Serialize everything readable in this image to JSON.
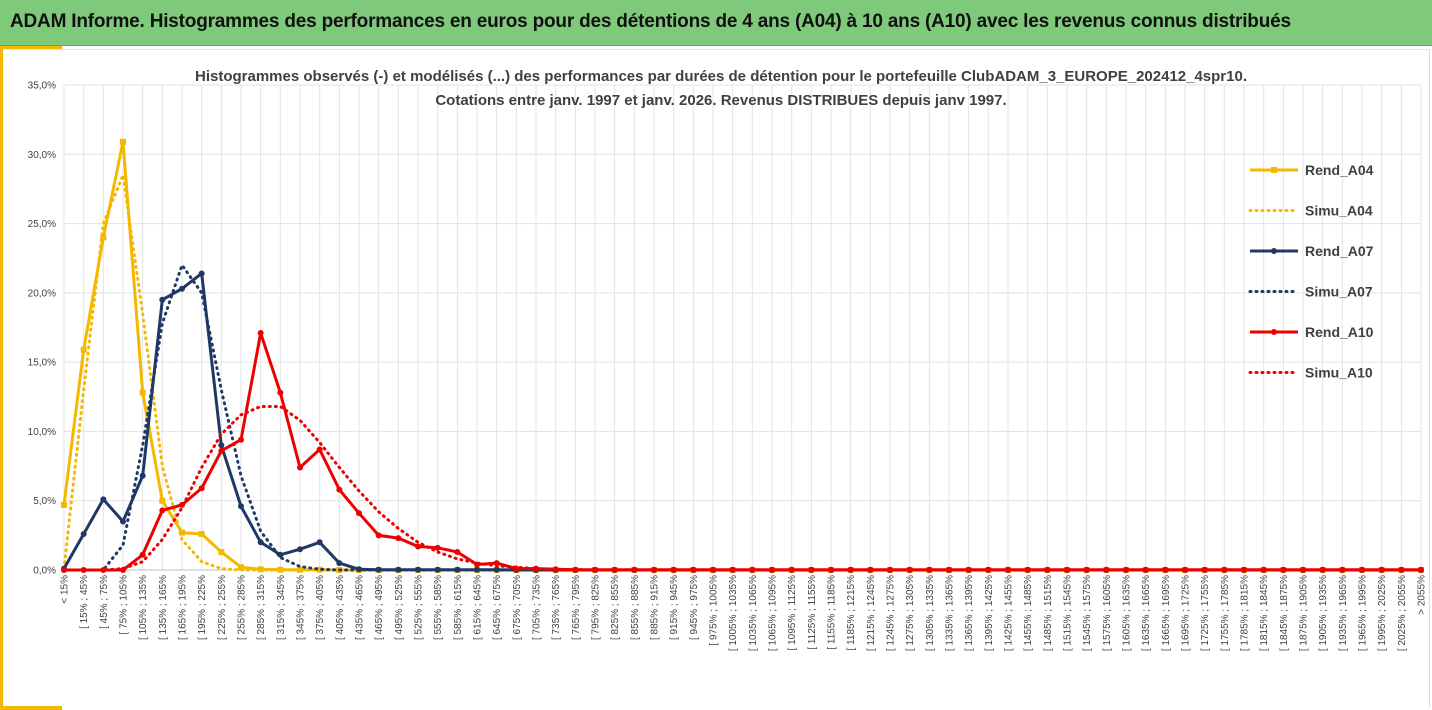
{
  "banner": {
    "title": "ADAM Informe. Histogrammes des performances en euros pour des détentions de 4 ans (A04) à 10 ans (A10) avec les revenus connus distribués"
  },
  "colors": {
    "banner_bg": "#7ec97a",
    "accent": "#f5b800",
    "a04": "#f5b800",
    "a07": "#1f3864",
    "a10": "#ee0000"
  },
  "chart_data": {
    "type": "line",
    "title_lines": [
      "Histogrammes observés (-) et modélisés (...) des performances par durées de détention pour le portefeuille ClubADAM_3_EUROPE_202412_4spr10.",
      "Cotations entre janv. 1997 et janv. 2026. Revenus DISTRIBUES depuis janv 1997."
    ],
    "ylim": [
      0,
      35
    ],
    "y_ticks": [
      "0,0%",
      "5,0%",
      "10,0%",
      "15,0%",
      "20,0%",
      "25,0%",
      "30,0%",
      "35,0%"
    ],
    "y_tick_values": [
      0,
      5,
      10,
      15,
      20,
      25,
      30,
      35
    ],
    "grid": true,
    "legend_position": "right",
    "categories": [
      "< 15%",
      "[ 15% ; 45%",
      "[ 45% ; 75%",
      "[ 75% ; 105%",
      "[ 105% ; 135%",
      "[ 135% ; 165%",
      "[ 165% ; 195%",
      "[ 195% ; 225%",
      "[ 225% ; 255%",
      "[ 255% ; 285%",
      "[ 285% ; 315%",
      "[ 315% ; 345%",
      "[ 345% ; 375%",
      "[ 375% ; 405%",
      "[ 405% ; 435%",
      "[ 435% ; 465%",
      "[ 465% ; 495%",
      "[ 495% ; 525%",
      "[ 525% ; 555%",
      "[ 555% ; 585%",
      "[ 585% ; 615%",
      "[ 615% ; 645%",
      "[ 645% ; 675%",
      "[ 675% ; 705%",
      "[ 705% ; 735%",
      "[ 735% ; 765%",
      "[ 765% ; 795%",
      "[ 795% ; 825%",
      "[ 825% ; 855%",
      "[ 855% ; 885%",
      "[ 885% ; 915%",
      "[ 915% ; 945%",
      "[ 945% ; 975%",
      "[ 975% ; 1005%",
      "[ 1005% ; 1035%",
      "[ 1035% ; 1065%",
      "[ 1065% ; 1095%",
      "[ 1095% ; 1125%",
      "[ 1125% ; 1155%",
      "[ 1155% ; 1185%",
      "[ 1185% ; 1215%",
      "[ 1215% ; 1245%",
      "[ 1245% ; 1275%",
      "[ 1275% ; 1305%",
      "[ 1305% ; 1335%",
      "[ 1335% ; 1365%",
      "[ 1365% ; 1395%",
      "[ 1395% ; 1425%",
      "[ 1425% ; 1455%",
      "[ 1455% ; 1485%",
      "[ 1485% ; 1515%",
      "[ 1515% ; 1545%",
      "[ 1545% ; 1575%",
      "[ 1575% ; 1605%",
      "[ 1605% ; 1635%",
      "[ 1635% ; 1665%",
      "[ 1665% ; 1695%",
      "[ 1695% ; 1725%",
      "[ 1725% ; 1755%",
      "[ 1755% ; 1785%",
      "[ 1785% ; 1815%",
      "[ 1815% ; 1845%",
      "[ 1845% ; 1875%",
      "[ 1875% ; 1905%",
      "[ 1905% ; 1935%",
      "[ 1935% ; 1965%",
      "[ 1965% ; 1995%",
      "[ 1995% ; 2025%",
      "[ 2025% ; 2055%",
      "> 2055%"
    ],
    "series": [
      {
        "name": "Rend_A04",
        "style": "solid",
        "color": "#f5b800",
        "marker": "square",
        "values": [
          4.7,
          15.9,
          24.0,
          30.9,
          12.8,
          5.0,
          2.7,
          2.6,
          1.3,
          0.2,
          0.05,
          0.02,
          0.02,
          0.02,
          0,
          0,
          0,
          0,
          0,
          0,
          0,
          0,
          0,
          0,
          0,
          0,
          0,
          0,
          0,
          0,
          0,
          0,
          0,
          0,
          0,
          0,
          0,
          0,
          0,
          0,
          0,
          0,
          0,
          0,
          0,
          0,
          0,
          0,
          0,
          0,
          0,
          0,
          0,
          0,
          0,
          0,
          0,
          0,
          0,
          0,
          0,
          0,
          0,
          0,
          0,
          0,
          0,
          0,
          0,
          0
        ]
      },
      {
        "name": "Simu_A04",
        "style": "dotted",
        "color": "#f5b800",
        "marker": "none",
        "values": [
          0.1,
          13.0,
          25.0,
          28.5,
          18.5,
          7.5,
          2.2,
          0.6,
          0.1,
          0,
          0,
          0,
          0,
          0,
          0,
          0,
          0,
          0,
          0,
          0,
          0,
          0,
          0,
          0,
          0,
          0,
          0,
          0,
          0,
          0,
          0,
          0,
          0,
          0,
          0,
          0,
          0,
          0,
          0,
          0,
          0,
          0,
          0,
          0,
          0,
          0,
          0,
          0,
          0,
          0,
          0,
          0,
          0,
          0,
          0,
          0,
          0,
          0,
          0,
          0,
          0,
          0,
          0,
          0,
          0,
          0,
          0,
          0,
          0,
          0
        ]
      },
      {
        "name": "Rend_A07",
        "style": "solid",
        "color": "#1f3864",
        "marker": "circle",
        "values": [
          0.1,
          2.6,
          5.1,
          3.5,
          6.8,
          19.5,
          20.3,
          21.4,
          9.0,
          4.6,
          2.0,
          1.1,
          1.5,
          2.0,
          0.5,
          0.05,
          0.02,
          0.02,
          0.02,
          0.02,
          0.02,
          0.02,
          0.02,
          0,
          0,
          0,
          0,
          0,
          0,
          0,
          0,
          0,
          0,
          0,
          0,
          0,
          0,
          0,
          0,
          0,
          0,
          0,
          0,
          0,
          0,
          0,
          0,
          0,
          0,
          0,
          0,
          0,
          0,
          0,
          0,
          0,
          0,
          0,
          0,
          0,
          0,
          0,
          0,
          0,
          0,
          0,
          0,
          0,
          0,
          0
        ]
      },
      {
        "name": "Simu_A07",
        "style": "dotted",
        "color": "#1f3864",
        "marker": "none",
        "values": [
          0,
          0,
          0,
          1.8,
          9.0,
          17.8,
          22.0,
          20.0,
          13.0,
          6.8,
          2.8,
          0.9,
          0.25,
          0.05,
          0,
          0,
          0,
          0,
          0,
          0,
          0,
          0,
          0,
          0,
          0,
          0,
          0,
          0,
          0,
          0,
          0,
          0,
          0,
          0,
          0,
          0,
          0,
          0,
          0,
          0,
          0,
          0,
          0,
          0,
          0,
          0,
          0,
          0,
          0,
          0,
          0,
          0,
          0,
          0,
          0,
          0,
          0,
          0,
          0,
          0,
          0,
          0,
          0,
          0,
          0,
          0,
          0,
          0,
          0,
          0
        ]
      },
      {
        "name": "Rend_A10",
        "style": "solid",
        "color": "#ee0000",
        "marker": "circle",
        "values": [
          0,
          0,
          0,
          0,
          1.1,
          4.3,
          4.7,
          5.9,
          8.6,
          9.4,
          17.1,
          12.8,
          7.4,
          8.7,
          5.8,
          4.1,
          2.5,
          2.3,
          1.7,
          1.6,
          1.3,
          0.4,
          0.5,
          0.1,
          0.1,
          0.05,
          0.02,
          0.02,
          0.02,
          0.02,
          0.02,
          0.02,
          0.02,
          0.02,
          0.02,
          0.02,
          0.02,
          0.02,
          0.02,
          0.02,
          0.02,
          0.02,
          0.02,
          0.02,
          0.02,
          0.02,
          0.02,
          0.02,
          0.02,
          0.02,
          0.02,
          0.02,
          0.02,
          0.02,
          0.02,
          0.02,
          0.02,
          0.02,
          0.02,
          0.02,
          0.02,
          0.02,
          0.02,
          0.02,
          0.02,
          0.02,
          0.02,
          0.02,
          0.02,
          0.02
        ]
      },
      {
        "name": "Simu_A10",
        "style": "dotted",
        "color": "#ee0000",
        "marker": "none",
        "values": [
          0,
          0,
          0,
          0.1,
          0.6,
          2.2,
          4.5,
          7.4,
          9.8,
          11.2,
          11.8,
          11.8,
          10.8,
          9.2,
          7.4,
          5.7,
          4.2,
          3.0,
          2.0,
          1.3,
          0.8,
          0.5,
          0.3,
          0.2,
          0.1,
          0.05,
          0.02,
          0,
          0,
          0,
          0,
          0,
          0,
          0,
          0,
          0,
          0,
          0,
          0,
          0,
          0,
          0,
          0,
          0,
          0,
          0,
          0,
          0,
          0,
          0,
          0,
          0,
          0,
          0,
          0,
          0,
          0,
          0,
          0,
          0,
          0,
          0,
          0,
          0,
          0,
          0,
          0,
          0,
          0,
          0
        ]
      }
    ]
  }
}
